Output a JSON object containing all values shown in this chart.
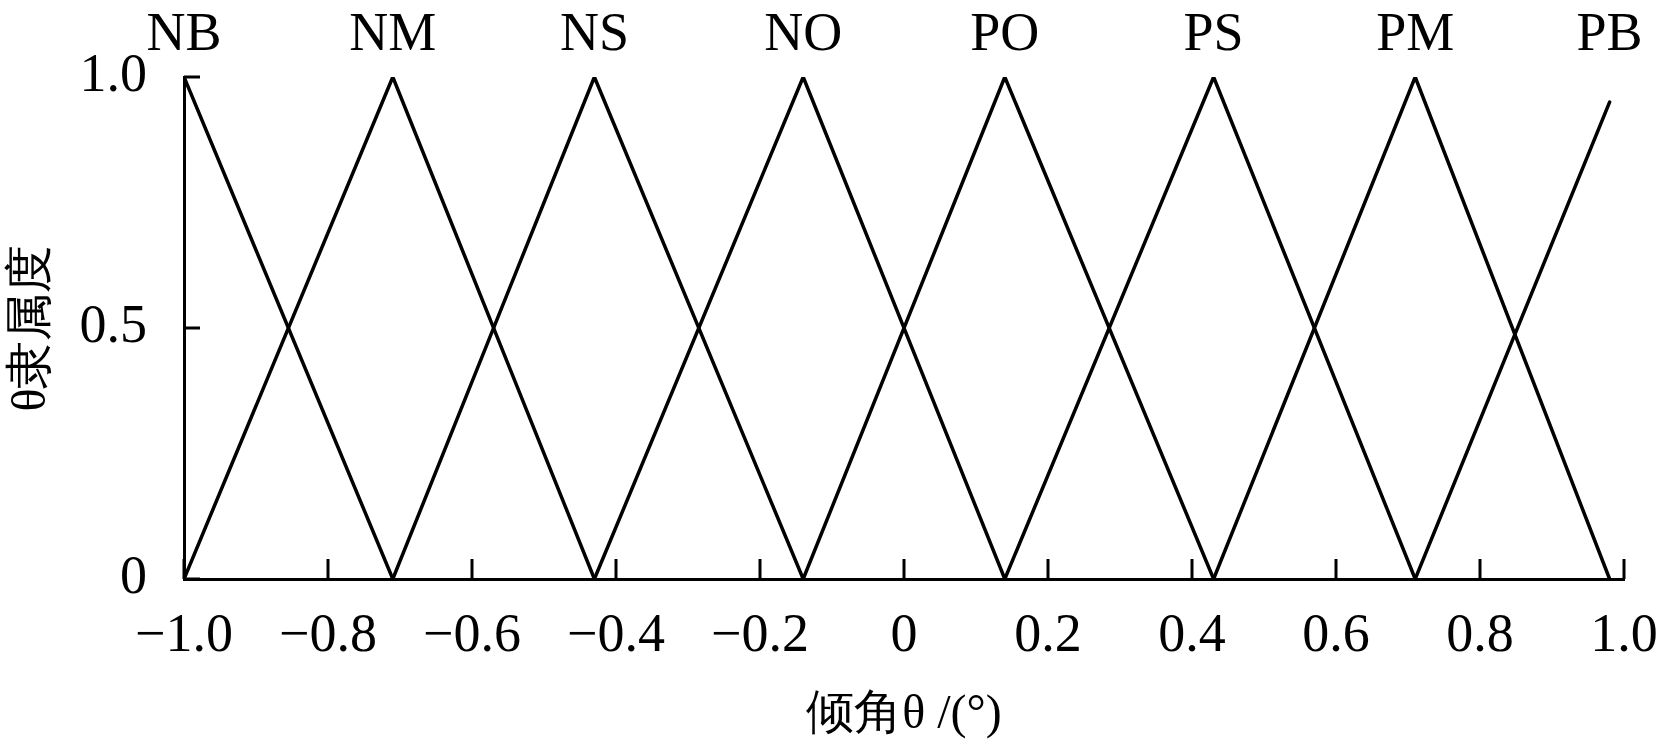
{
  "chart_data": {
    "type": "line",
    "xlabel": "倾角θ /(°)",
    "ylabel": "θ隶属度",
    "xlim": [
      -1,
      1
    ],
    "xticks": [
      {
        "value": -1,
        "label": "−1.0"
      },
      {
        "value": -0.8,
        "label": "−0.8"
      },
      {
        "value": -0.6,
        "label": "−0.6"
      },
      {
        "value": -0.4,
        "label": "−0.4"
      },
      {
        "value": -0.2,
        "label": "−0.2"
      },
      0,
      0.2,
      0.4,
      0.6,
      0.8,
      {
        "value": 1,
        "label": "1.0"
      }
    ],
    "ylim": [
      0,
      1
    ],
    "yticks": [
      0,
      0.5,
      {
        "value": 1,
        "label": "1.0"
      }
    ],
    "grid": false,
    "legend": false,
    "marker": "none",
    "line_style": "solid",
    "series": [
      {
        "name": "NB",
        "color": "#000000",
        "x": [
          -1,
          -0.71
        ],
        "values": [
          1,
          0
        ]
      },
      {
        "name": "NM",
        "color": "#000000",
        "x": [
          -1,
          -0.71,
          -0.43
        ],
        "values": [
          0,
          1,
          0
        ]
      },
      {
        "name": "NS",
        "color": "#000000",
        "x": [
          -0.71,
          -0.43,
          -0.14
        ],
        "values": [
          0,
          1,
          0
        ]
      },
      {
        "name": "NO",
        "color": "#000000",
        "x": [
          -0.43,
          -0.14,
          0.14
        ],
        "values": [
          0,
          1,
          0
        ]
      },
      {
        "name": "PO",
        "color": "#000000",
        "x": [
          -0.14,
          0.14,
          0.43
        ],
        "values": [
          0,
          1,
          0
        ]
      },
      {
        "name": "PS",
        "color": "#000000",
        "x": [
          0.14,
          0.43,
          0.71
        ],
        "values": [
          0,
          1,
          0
        ]
      },
      {
        "name": "PM",
        "color": "#000000",
        "x": [
          0.43,
          0.71,
          0.98
        ],
        "values": [
          0,
          1,
          0
        ]
      },
      {
        "name": "PB",
        "color": "#000000",
        "x": [
          0.71,
          0.98
        ],
        "values": [
          0,
          0.95
        ]
      }
    ]
  }
}
